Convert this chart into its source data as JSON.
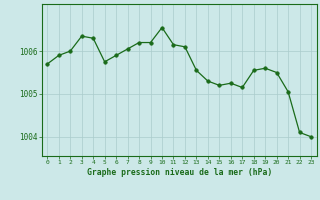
{
  "x": [
    0,
    1,
    2,
    3,
    4,
    5,
    6,
    7,
    8,
    9,
    10,
    11,
    12,
    13,
    14,
    15,
    16,
    17,
    18,
    19,
    20,
    21,
    22,
    23
  ],
  "y": [
    1005.7,
    1005.9,
    1006.0,
    1006.35,
    1006.3,
    1005.75,
    1005.9,
    1006.05,
    1006.2,
    1006.2,
    1006.55,
    1006.15,
    1006.1,
    1005.55,
    1005.3,
    1005.2,
    1005.25,
    1005.15,
    1005.55,
    1005.6,
    1005.5,
    1005.05,
    1004.1,
    1004.0
  ],
  "line_color": "#1a6b1a",
  "marker": "o",
  "markersize": 2.5,
  "bg_color": "#cce8e8",
  "grid_color": "#aacccc",
  "xlabel": "Graphe pression niveau de la mer (hPa)",
  "xlabel_color": "#1a6b1a",
  "tick_color": "#1a6b1a",
  "yticks": [
    1004,
    1005,
    1006
  ],
  "xticks": [
    0,
    1,
    2,
    3,
    4,
    5,
    6,
    7,
    8,
    9,
    10,
    11,
    12,
    13,
    14,
    15,
    16,
    17,
    18,
    19,
    20,
    21,
    22,
    23
  ],
  "ylim": [
    1003.55,
    1007.1
  ],
  "xlim": [
    -0.5,
    23.5
  ]
}
